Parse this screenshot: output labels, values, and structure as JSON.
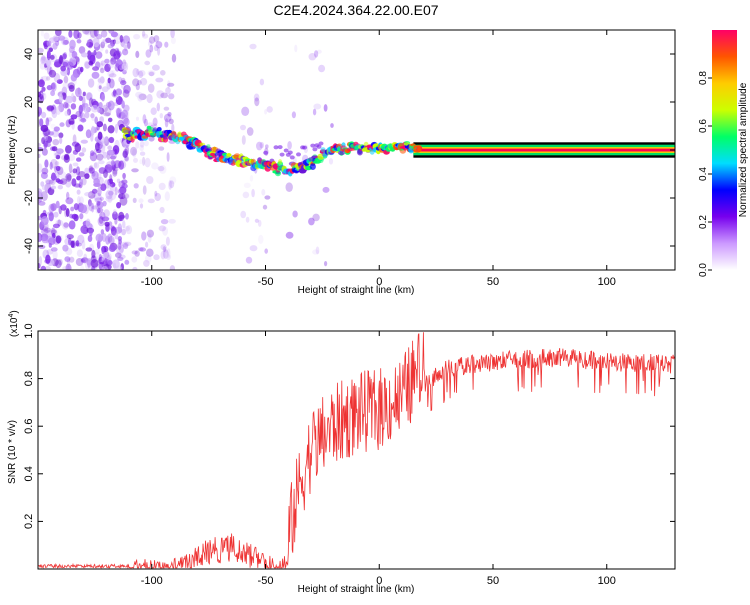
{
  "title": "C2E4.2024.364.22.00.E07",
  "chart_data": [
    {
      "type": "heatmap",
      "xlabel": "Height of straight line (km)",
      "ylabel": "Frequency (Hz)",
      "xlim": [
        -150,
        130
      ],
      "ylim": [
        -50,
        50
      ],
      "x_ticks": [
        -100,
        -50,
        0,
        50,
        100
      ],
      "y_ticks": [
        -40,
        -20,
        0,
        20,
        40
      ],
      "grid": false,
      "colorbar": {
        "label": "Normalized spectral amplitude",
        "range": [
          0,
          1
        ],
        "ticks": [
          0.0,
          0.2,
          0.4,
          0.6,
          0.8
        ],
        "colors": [
          "#ffffff",
          "#cc99ff",
          "#7700ee",
          "#0000ff",
          "#00ddff",
          "#00ff66",
          "#ccff00",
          "#ffcc00",
          "#ff5500",
          "#ff0066"
        ]
      },
      "ridge": [
        {
          "x": -110,
          "y": 6
        },
        {
          "x": -100,
          "y": 7
        },
        {
          "x": -90,
          "y": 6
        },
        {
          "x": -80,
          "y": 2
        },
        {
          "x": -70,
          "y": -3
        },
        {
          "x": -60,
          "y": -5
        },
        {
          "x": -50,
          "y": -6
        },
        {
          "x": -40,
          "y": -8
        },
        {
          "x": -30,
          "y": -6
        },
        {
          "x": -25,
          "y": -2
        },
        {
          "x": -20,
          "y": 0
        },
        {
          "x": -10,
          "y": 0.5
        },
        {
          "x": 0,
          "y": 1
        },
        {
          "x": 10,
          "y": 1
        },
        {
          "x": 20,
          "y": 0.5
        },
        {
          "x": 130,
          "y": 0
        }
      ]
    },
    {
      "type": "line",
      "xlabel": "Height of straight line (km)",
      "ylabel": "SNR (10 * v/v)",
      "y_scale_label": "(x10",
      "y_scale_exp": "4",
      "y_scale_close": ")",
      "xlim": [
        -150,
        130
      ],
      "ylim": [
        0,
        1.0
      ],
      "x_ticks": [
        -100,
        -50,
        0,
        50,
        100
      ],
      "y_ticks": [
        0.2,
        0.4,
        0.6,
        0.8,
        1.0
      ],
      "grid": false,
      "series": [
        {
          "color": "#ee3333",
          "envelope": [
            {
              "x": -150,
              "y": 0.02
            },
            {
              "x": -110,
              "y": 0.02
            },
            {
              "x": -105,
              "y": 0.05
            },
            {
              "x": -95,
              "y": 0.03
            },
            {
              "x": -85,
              "y": 0.06
            },
            {
              "x": -75,
              "y": 0.13
            },
            {
              "x": -65,
              "y": 0.15
            },
            {
              "x": -55,
              "y": 0.1
            },
            {
              "x": -45,
              "y": 0.04
            },
            {
              "x": -40,
              "y": 0.08
            },
            {
              "x": -35,
              "y": 0.3
            },
            {
              "x": -30,
              "y": 0.45
            },
            {
              "x": -20,
              "y": 0.55
            },
            {
              "x": -10,
              "y": 0.6
            },
            {
              "x": 0,
              "y": 0.62
            },
            {
              "x": 10,
              "y": 0.67
            },
            {
              "x": 20,
              "y": 0.82
            },
            {
              "x": 30,
              "y": 0.88
            },
            {
              "x": 40,
              "y": 0.9
            },
            {
              "x": 60,
              "y": 0.92
            },
            {
              "x": 80,
              "y": 0.93
            },
            {
              "x": 100,
              "y": 0.91
            },
            {
              "x": 130,
              "y": 0.9
            }
          ]
        }
      ]
    }
  ]
}
